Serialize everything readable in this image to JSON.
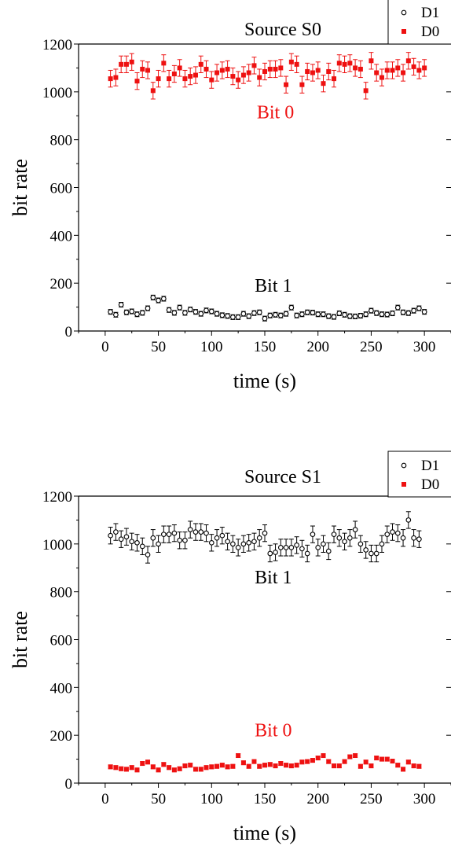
{
  "chart_data": [
    {
      "type": "scatter",
      "title": "Source S0",
      "xlabel": "time (s)",
      "ylabel": "bit rate",
      "xlim": [
        -25,
        325
      ],
      "ylim": [
        0,
        1200
      ],
      "xticks": [
        0,
        50,
        100,
        150,
        200,
        250,
        300
      ],
      "yticks": [
        0,
        200,
        400,
        600,
        800,
        1000,
        1200
      ],
      "legend_position": "top-right",
      "annotations": [
        {
          "text": "Bit 0",
          "x": 160,
          "y": 890,
          "color": "#ee1111"
        },
        {
          "text": "Bit 1",
          "x": 158,
          "y": 165,
          "color": "#000000"
        }
      ],
      "series": [
        {
          "name": "D1",
          "marker": "open-circle",
          "color": "#000000",
          "err": 10,
          "x": [
            5,
            10,
            15,
            20,
            25,
            30,
            35,
            40,
            45,
            50,
            55,
            60,
            65,
            70,
            75,
            80,
            85,
            90,
            95,
            100,
            105,
            110,
            115,
            120,
            125,
            130,
            135,
            140,
            145,
            150,
            155,
            160,
            165,
            170,
            175,
            180,
            185,
            190,
            195,
            200,
            205,
            210,
            215,
            220,
            225,
            230,
            235,
            240,
            245,
            250,
            255,
            260,
            265,
            270,
            275,
            280,
            285,
            290,
            295,
            300
          ],
          "values": [
            80,
            68,
            110,
            78,
            82,
            70,
            76,
            95,
            140,
            128,
            135,
            88,
            76,
            98,
            76,
            90,
            80,
            72,
            86,
            82,
            72,
            66,
            63,
            58,
            58,
            72,
            62,
            75,
            78,
            52,
            65,
            68,
            65,
            72,
            98,
            65,
            70,
            78,
            77,
            70,
            70,
            62,
            59,
            74,
            68,
            62,
            61,
            64,
            70,
            85,
            75,
            70,
            69,
            74,
            98,
            78,
            75,
            85,
            95,
            80
          ]
        },
        {
          "name": "D0",
          "marker": "filled-square",
          "color": "#ee1111",
          "err": 35,
          "x": [
            5,
            10,
            15,
            20,
            25,
            30,
            35,
            40,
            45,
            50,
            55,
            60,
            65,
            70,
            75,
            80,
            85,
            90,
            95,
            100,
            105,
            110,
            115,
            120,
            125,
            130,
            135,
            140,
            145,
            150,
            155,
            160,
            165,
            170,
            175,
            180,
            185,
            190,
            195,
            200,
            205,
            210,
            215,
            220,
            225,
            230,
            235,
            240,
            245,
            250,
            255,
            260,
            265,
            270,
            275,
            280,
            285,
            290,
            295,
            300
          ],
          "values": [
            1055,
            1060,
            1115,
            1115,
            1125,
            1045,
            1095,
            1090,
            1005,
            1055,
            1120,
            1055,
            1075,
            1100,
            1055,
            1065,
            1070,
            1115,
            1095,
            1050,
            1080,
            1090,
            1095,
            1065,
            1050,
            1070,
            1080,
            1110,
            1060,
            1085,
            1095,
            1095,
            1100,
            1030,
            1125,
            1115,
            1030,
            1085,
            1080,
            1090,
            1035,
            1085,
            1055,
            1120,
            1115,
            1120,
            1100,
            1095,
            1005,
            1130,
            1080,
            1060,
            1090,
            1090,
            1100,
            1080,
            1130,
            1105,
            1090,
            1100
          ]
        }
      ]
    },
    {
      "type": "scatter",
      "title": "Source S1",
      "xlabel": "time (s)",
      "ylabel": "bit rate",
      "xlim": [
        -25,
        325
      ],
      "ylim": [
        0,
        1200
      ],
      "xticks": [
        0,
        50,
        100,
        150,
        200,
        250,
        300
      ],
      "yticks": [
        0,
        200,
        400,
        600,
        800,
        1000,
        1200
      ],
      "legend_position": "top-right",
      "annotations": [
        {
          "text": "Bit 1",
          "x": 158,
          "y": 835,
          "color": "#000000"
        },
        {
          "text": "Bit 0",
          "x": 158,
          "y": 195,
          "color": "#ee1111"
        }
      ],
      "series": [
        {
          "name": "D1",
          "marker": "open-circle",
          "color": "#000000",
          "err": 35,
          "x": [
            5,
            10,
            15,
            20,
            25,
            30,
            35,
            40,
            45,
            50,
            55,
            60,
            65,
            70,
            75,
            80,
            85,
            90,
            95,
            100,
            105,
            110,
            115,
            120,
            125,
            130,
            135,
            140,
            145,
            150,
            155,
            160,
            165,
            170,
            175,
            180,
            185,
            190,
            195,
            200,
            205,
            210,
            215,
            220,
            225,
            230,
            235,
            240,
            245,
            250,
            255,
            260,
            265,
            270,
            275,
            280,
            285,
            290,
            295
          ],
          "values": [
            1035,
            1050,
            1020,
            1030,
            1010,
            1005,
            990,
            955,
            1025,
            1000,
            1040,
            1040,
            1045,
            1015,
            1015,
            1060,
            1050,
            1050,
            1045,
            1005,
            1025,
            1035,
            1010,
            1000,
            985,
            1000,
            1005,
            1010,
            1025,
            1045,
            960,
            965,
            985,
            985,
            985,
            995,
            980,
            960,
            1040,
            985,
            1000,
            970,
            1040,
            1025,
            1010,
            1025,
            1060,
            1000,
            975,
            960,
            960,
            1000,
            1040,
            1050,
            1045,
            1025,
            1100,
            1025,
            1020
          ]
        },
        {
          "name": "D0",
          "marker": "filled-square",
          "color": "#ee1111",
          "err": 8,
          "x": [
            5,
            10,
            15,
            20,
            25,
            30,
            35,
            40,
            45,
            50,
            55,
            60,
            65,
            70,
            75,
            80,
            85,
            90,
            95,
            100,
            105,
            110,
            115,
            120,
            125,
            130,
            135,
            140,
            145,
            150,
            155,
            160,
            165,
            170,
            175,
            180,
            185,
            190,
            195,
            200,
            205,
            210,
            215,
            220,
            225,
            230,
            235,
            240,
            245,
            250,
            255,
            260,
            265,
            270,
            275,
            280,
            285,
            290,
            295
          ],
          "values": [
            68,
            65,
            60,
            58,
            65,
            55,
            82,
            88,
            68,
            55,
            78,
            65,
            55,
            60,
            72,
            75,
            58,
            58,
            65,
            68,
            70,
            75,
            68,
            70,
            115,
            85,
            70,
            90,
            70,
            75,
            78,
            72,
            82,
            75,
            72,
            75,
            88,
            90,
            95,
            105,
            115,
            90,
            72,
            72,
            90,
            110,
            115,
            70,
            88,
            72,
            105,
            100,
            100,
            92,
            75,
            58,
            88,
            72,
            70
          ]
        }
      ]
    }
  ]
}
